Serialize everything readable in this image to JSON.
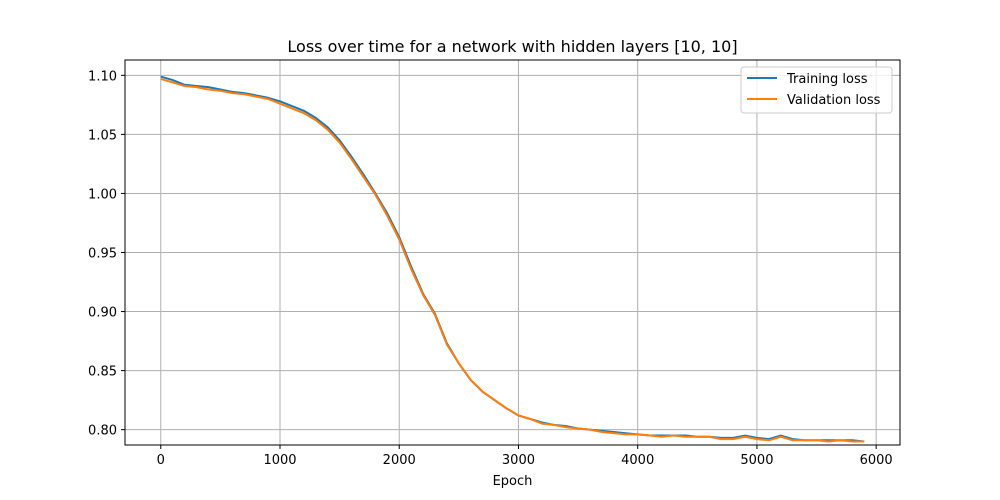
{
  "chart_data": {
    "type": "line",
    "title": "Loss over time for a network with hidden layers [10, 10]",
    "xlabel": "Epoch",
    "ylabel": "",
    "xlim": [
      -300,
      6200
    ],
    "ylim": [
      0.787,
      1.113
    ],
    "xticks": [
      0,
      1000,
      2000,
      3000,
      4000,
      5000,
      6000
    ],
    "yticks": [
      0.8,
      0.85,
      0.9,
      0.95,
      1.0,
      1.05,
      1.1
    ],
    "grid": true,
    "legend_position": "top-right",
    "colors": {
      "training": "#1f77b4",
      "validation": "#ff7f0e",
      "grid": "#b0b0b0"
    },
    "x": [
      0,
      100,
      200,
      300,
      400,
      500,
      600,
      700,
      800,
      900,
      1000,
      1100,
      1200,
      1300,
      1400,
      1500,
      1600,
      1700,
      1800,
      1900,
      2000,
      2100,
      2200,
      2300,
      2400,
      2500,
      2600,
      2700,
      2800,
      2900,
      3000,
      3100,
      3200,
      3300,
      3400,
      3500,
      3600,
      3700,
      3800,
      3900,
      4000,
      4100,
      4200,
      4300,
      4400,
      4500,
      4600,
      4700,
      4800,
      4900,
      5000,
      5100,
      5200,
      5300,
      5400,
      5500,
      5600,
      5700,
      5800,
      5900
    ],
    "series": [
      {
        "name": "Training loss",
        "values": [
          1.099,
          1.096,
          1.092,
          1.091,
          1.09,
          1.088,
          1.086,
          1.085,
          1.083,
          1.081,
          1.078,
          1.074,
          1.07,
          1.064,
          1.056,
          1.045,
          1.031,
          1.016,
          1.0,
          0.983,
          0.963,
          0.938,
          0.915,
          0.898,
          0.873,
          0.856,
          0.842,
          0.832,
          0.825,
          0.818,
          0.812,
          0.809,
          0.806,
          0.804,
          0.803,
          0.801,
          0.8,
          0.799,
          0.798,
          0.797,
          0.796,
          0.795,
          0.795,
          0.795,
          0.795,
          0.794,
          0.794,
          0.793,
          0.793,
          0.795,
          0.793,
          0.792,
          0.795,
          0.792,
          0.791,
          0.791,
          0.791,
          0.791,
          0.791,
          0.79
        ]
      },
      {
        "name": "Validation loss",
        "values": [
          1.097,
          1.094,
          1.091,
          1.09,
          1.088,
          1.087,
          1.085,
          1.084,
          1.082,
          1.08,
          1.076,
          1.072,
          1.068,
          1.062,
          1.054,
          1.043,
          1.029,
          1.014,
          0.999,
          0.981,
          0.961,
          0.936,
          0.914,
          0.897,
          0.872,
          0.856,
          0.842,
          0.832,
          0.825,
          0.818,
          0.812,
          0.809,
          0.805,
          0.804,
          0.802,
          0.801,
          0.8,
          0.798,
          0.797,
          0.796,
          0.796,
          0.795,
          0.794,
          0.795,
          0.794,
          0.794,
          0.794,
          0.792,
          0.792,
          0.794,
          0.792,
          0.791,
          0.794,
          0.791,
          0.791,
          0.791,
          0.79,
          0.791,
          0.79,
          0.79
        ]
      }
    ]
  }
}
